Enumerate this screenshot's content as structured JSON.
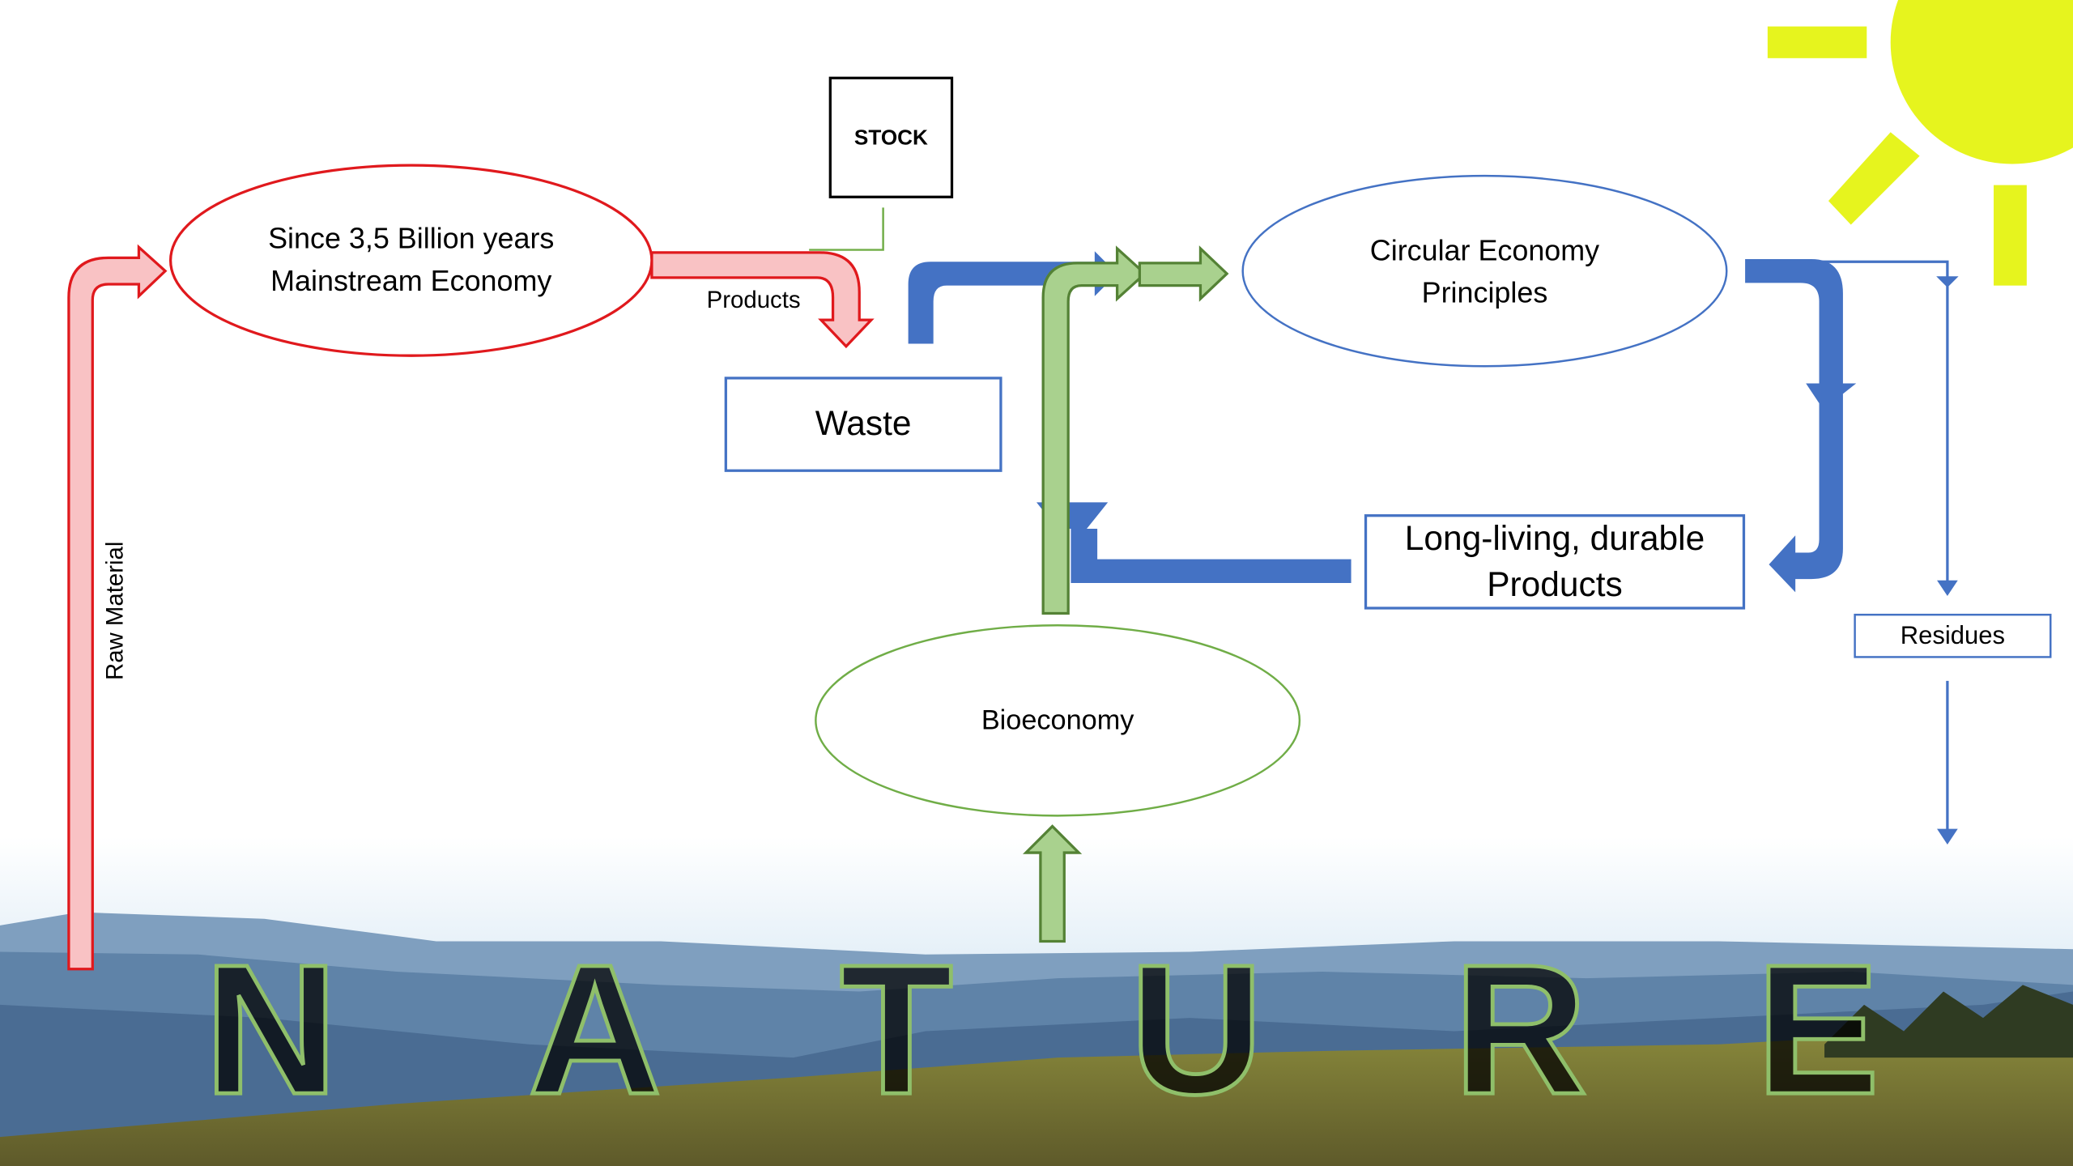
{
  "nodes": {
    "mainstream": {
      "lines": [
        "Since 3,5 Billion years",
        "Mainstream Economy"
      ]
    },
    "stock": {
      "label": "STOCK"
    },
    "waste": {
      "label": "Waste"
    },
    "circular": {
      "lines": [
        "Circular Economy",
        "Principles"
      ]
    },
    "durable": {
      "lines": [
        "Long-living, durable",
        "Products"
      ]
    },
    "residues": {
      "label": "Residues"
    },
    "bioeconomy": {
      "label": "Bioeconomy"
    }
  },
  "labels": {
    "products": "Products",
    "raw_material": "Raw Material"
  },
  "nature": [
    "N",
    "A",
    "T",
    "U",
    "R",
    "E"
  ]
}
